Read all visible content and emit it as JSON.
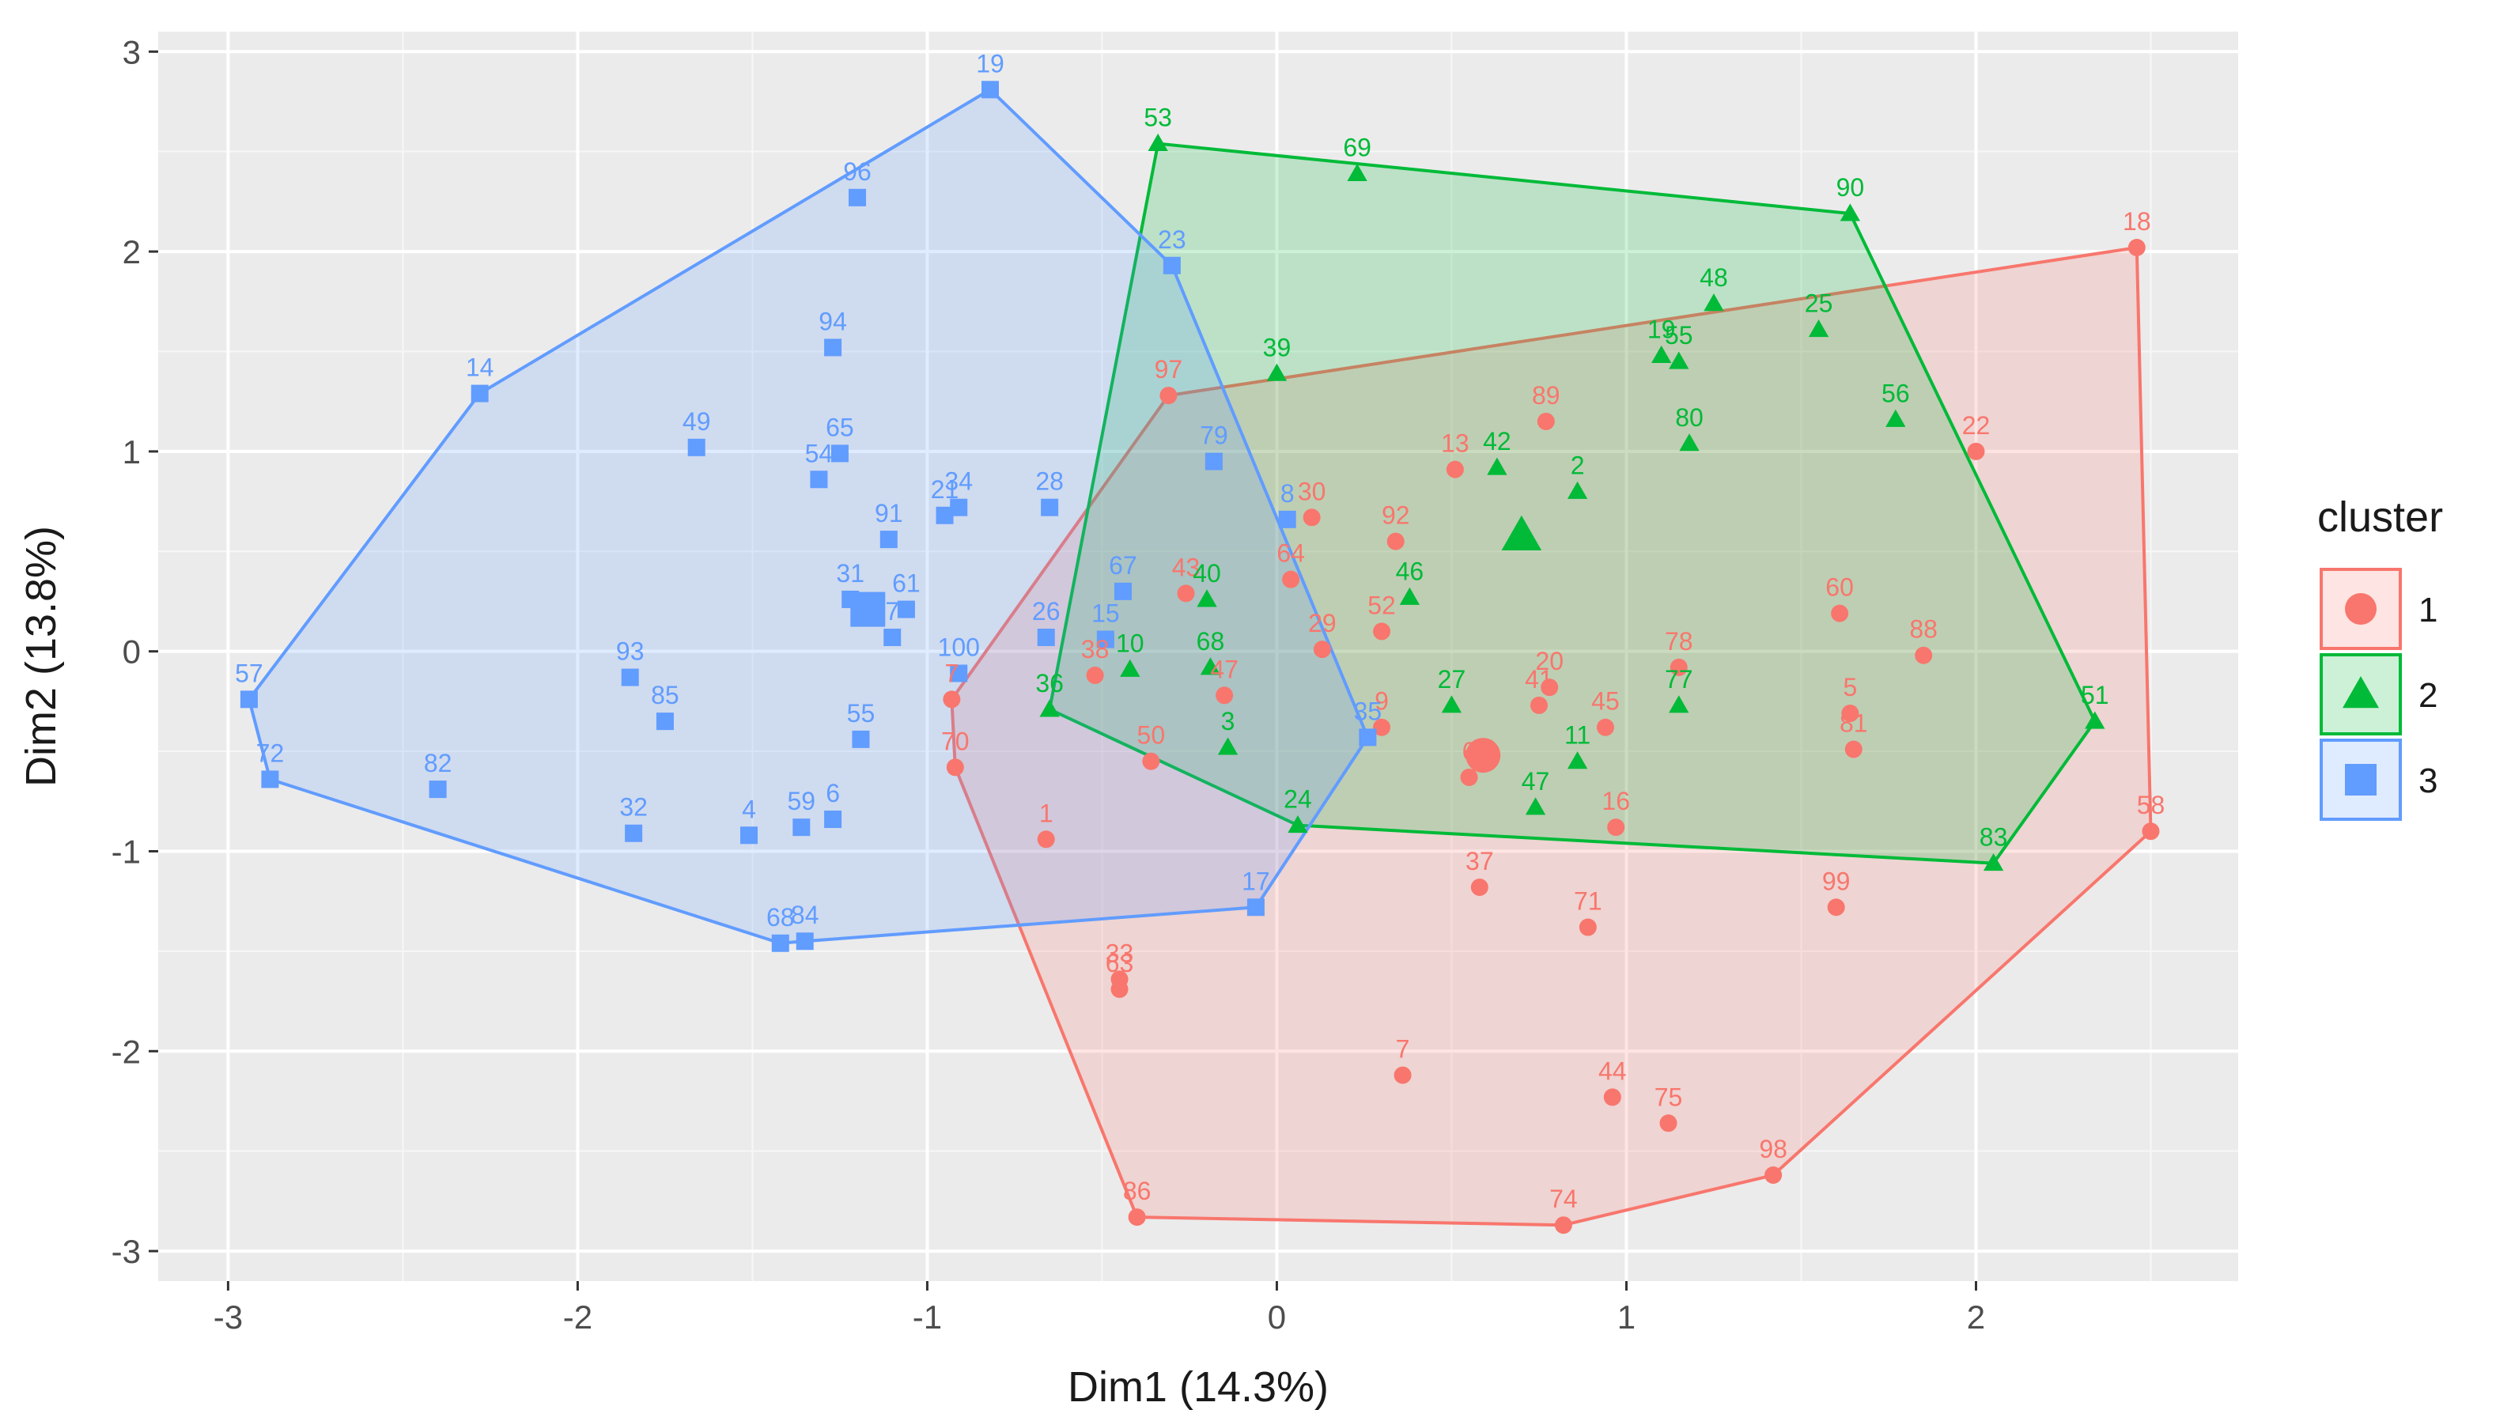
{
  "chart_data": {
    "type": "scatter",
    "title": "",
    "xlabel": "Dim1 (14.3%)",
    "ylabel": "Dim2 (13.8%)",
    "xlim": [
      -3.2,
      2.75
    ],
    "ylim": [
      -3.15,
      3.1
    ],
    "xticks": [
      -3,
      -2,
      -1,
      0,
      1,
      2
    ],
    "xtick_labels": [
      "-3",
      "-2",
      "-1",
      "0",
      "1",
      "2"
    ],
    "yticks": [
      -3,
      -2,
      -1,
      0,
      1,
      2,
      3
    ],
    "ytick_labels": [
      "-3",
      "-2",
      "-1",
      "0",
      "1",
      "2",
      "3"
    ],
    "grid": true,
    "legend": {
      "title": "cluster",
      "position": "right",
      "entries": [
        {
          "label": "1",
          "shape": "circle"
        },
        {
          "label": "2",
          "shape": "triangle"
        },
        {
          "label": "3",
          "shape": "square"
        }
      ]
    },
    "series": [
      {
        "name": "1",
        "shape": "circle",
        "color": "#F8766D",
        "centroid": [
          0.59,
          -0.52
        ],
        "hull": [
          "97",
          "18",
          "58",
          "98",
          "74",
          "86",
          "70",
          "7_",
          "97"
        ],
        "points": [
          {
            "label": "18",
            "x": 2.46,
            "y": 2.02
          },
          {
            "label": "22",
            "x": 2.0,
            "y": 1.0
          },
          {
            "label": "58",
            "x": 2.5,
            "y": -0.9
          },
          {
            "label": "98",
            "x": 1.42,
            "y": -2.62
          },
          {
            "label": "74",
            "x": 0.82,
            "y": -2.87
          },
          {
            "label": "86",
            "x": -0.4,
            "y": -2.83
          },
          {
            "label": "70",
            "x": -0.92,
            "y": -0.58
          },
          {
            "label": "7_",
            "x": -0.93,
            "y": -0.24
          },
          {
            "label": "97",
            "x": -0.31,
            "y": 1.28
          },
          {
            "label": "89",
            "x": 0.77,
            "y": 1.15
          },
          {
            "label": "13",
            "x": 0.51,
            "y": 0.91
          },
          {
            "label": "30",
            "x": 0.1,
            "y": 0.67
          },
          {
            "label": "92",
            "x": 0.34,
            "y": 0.55
          },
          {
            "label": "64",
            "x": 0.04,
            "y": 0.36
          },
          {
            "label": "43",
            "x": -0.26,
            "y": 0.29
          },
          {
            "label": "29",
            "x": 0.13,
            "y": 0.01
          },
          {
            "label": "52",
            "x": 0.3,
            "y": 0.1
          },
          {
            "label": "47",
            "x": -0.15,
            "y": -0.22
          },
          {
            "label": "38",
            "x": -0.52,
            "y": -0.12
          },
          {
            "label": "60",
            "x": 1.61,
            "y": 0.19
          },
          {
            "label": "88",
            "x": 1.85,
            "y": -0.02
          },
          {
            "label": "78",
            "x": 1.15,
            "y": -0.08
          },
          {
            "label": "20",
            "x": 0.78,
            "y": -0.18
          },
          {
            "label": "41",
            "x": 0.75,
            "y": -0.27
          },
          {
            "label": "45",
            "x": 0.94,
            "y": -0.38
          },
          {
            "label": "5",
            "x": 1.64,
            "y": -0.31
          },
          {
            "label": "81",
            "x": 1.65,
            "y": -0.49
          },
          {
            "label": "9",
            "x": 0.3,
            "y": -0.38
          },
          {
            "label": "6_",
            "x": 0.55,
            "y": -0.63
          },
          {
            "label": "16",
            "x": 0.97,
            "y": -0.88
          },
          {
            "label": "50",
            "x": -0.36,
            "y": -0.55
          },
          {
            "label": "1",
            "x": -0.66,
            "y": -0.94
          },
          {
            "label": "37",
            "x": 0.58,
            "y": -1.18
          },
          {
            "label": "71",
            "x": 0.89,
            "y": -1.38
          },
          {
            "label": "99",
            "x": 1.6,
            "y": -1.28
          },
          {
            "label": "33",
            "x": -0.45,
            "y": -1.64
          },
          {
            "label": "63",
            "x": -0.45,
            "y": -1.69
          },
          {
            "label": "7",
            "x": 0.36,
            "y": -2.12
          },
          {
            "label": "44",
            "x": 0.96,
            "y": -2.23
          },
          {
            "label": "75",
            "x": 1.12,
            "y": -2.36
          }
        ]
      },
      {
        "name": "2",
        "shape": "triangle",
        "color": "#00BA38",
        "centroid": [
          0.7,
          0.58
        ],
        "hull": [
          "53",
          "90",
          "51",
          "83",
          "24",
          "36",
          "53"
        ],
        "points": [
          {
            "label": "53",
            "x": -0.34,
            "y": 2.54
          },
          {
            "label": "69",
            "x": 0.23,
            "y": 2.39
          },
          {
            "label": "90",
            "x": 1.64,
            "y": 2.19
          },
          {
            "label": "48",
            "x": 1.25,
            "y": 1.74
          },
          {
            "label": "25",
            "x": 1.55,
            "y": 1.61
          },
          {
            "label": "19_",
            "x": 1.1,
            "y": 1.48
          },
          {
            "label": "55_",
            "x": 1.15,
            "y": 1.45
          },
          {
            "label": "39",
            "x": 0.0,
            "y": 1.39
          },
          {
            "label": "56",
            "x": 1.77,
            "y": 1.16
          },
          {
            "label": "80",
            "x": 1.18,
            "y": 1.04
          },
          {
            "label": "42",
            "x": 0.63,
            "y": 0.92
          },
          {
            "label": "2",
            "x": 0.86,
            "y": 0.8
          },
          {
            "label": "46",
            "x": 0.38,
            "y": 0.27
          },
          {
            "label": "40",
            "x": -0.2,
            "y": 0.26
          },
          {
            "label": "10",
            "x": -0.42,
            "y": -0.09
          },
          {
            "label": "68",
            "x": -0.19,
            "y": -0.08
          },
          {
            "label": "36",
            "x": -0.65,
            "y": -0.29
          },
          {
            "label": "27",
            "x": 0.5,
            "y": -0.27
          },
          {
            "label": "77",
            "x": 1.15,
            "y": -0.27
          },
          {
            "label": "3",
            "x": -0.14,
            "y": -0.48
          },
          {
            "label": "11",
            "x": 0.86,
            "y": -0.55
          },
          {
            "label": "47",
            "x": 0.74,
            "y": -0.78
          },
          {
            "label": "24",
            "x": 0.06,
            "y": -0.87
          },
          {
            "label": "51",
            "x": 2.34,
            "y": -0.35
          },
          {
            "label": "83",
            "x": 2.05,
            "y": -1.06
          }
        ]
      },
      {
        "name": "3",
        "shape": "square",
        "color": "#619CFF",
        "centroid": [
          -1.17,
          0.21
        ],
        "hull": [
          "19",
          "23",
          "35_",
          "17",
          "84",
          "68_",
          "72",
          "57",
          "14",
          "19"
        ],
        "points": [
          {
            "label": "19",
            "x": -0.82,
            "y": 2.81
          },
          {
            "label": "96",
            "x": -1.2,
            "y": 2.27
          },
          {
            "label": "23",
            "x": -0.3,
            "y": 1.93
          },
          {
            "label": "14",
            "x": -2.28,
            "y": 1.29
          },
          {
            "label": "94",
            "x": -1.27,
            "y": 1.52
          },
          {
            "label": "49",
            "x": -1.66,
            "y": 1.02
          },
          {
            "label": "65",
            "x": -1.25,
            "y": 0.99
          },
          {
            "label": "54",
            "x": -1.31,
            "y": 0.86
          },
          {
            "label": "21_",
            "x": -0.95,
            "y": 0.68
          },
          {
            "label": "34",
            "x": -0.91,
            "y": 0.72
          },
          {
            "label": "28",
            "x": -0.65,
            "y": 0.72
          },
          {
            "label": "91",
            "x": -1.11,
            "y": 0.56
          },
          {
            "label": "79",
            "x": -0.18,
            "y": 0.95
          },
          {
            "label": "8",
            "x": 0.03,
            "y": 0.66
          },
          {
            "label": "67",
            "x": -0.44,
            "y": 0.3
          },
          {
            "label": "31",
            "x": -1.22,
            "y": 0.26
          },
          {
            "label": "61",
            "x": -1.06,
            "y": 0.21
          },
          {
            "label": "7_b",
            "x": -1.1,
            "y": 0.07
          },
          {
            "label": "26",
            "x": -0.66,
            "y": 0.07
          },
          {
            "label": "15",
            "x": -0.49,
            "y": 0.06
          },
          {
            "label": "100",
            "x": -0.91,
            "y": -0.11
          },
          {
            "label": "57",
            "x": -2.94,
            "y": -0.24
          },
          {
            "label": "93",
            "x": -1.85,
            "y": -0.13
          },
          {
            "label": "85",
            "x": -1.75,
            "y": -0.35
          },
          {
            "label": "55",
            "x": -1.19,
            "y": -0.44
          },
          {
            "label": "35_",
            "x": 0.26,
            "y": -0.43
          },
          {
            "label": "72",
            "x": -2.88,
            "y": -0.64
          },
          {
            "label": "82",
            "x": -2.4,
            "y": -0.69
          },
          {
            "label": "32",
            "x": -1.84,
            "y": -0.91
          },
          {
            "label": "4",
            "x": -1.51,
            "y": -0.92
          },
          {
            "label": "59",
            "x": -1.36,
            "y": -0.88
          },
          {
            "label": "6",
            "x": -1.27,
            "y": -0.84
          },
          {
            "label": "17",
            "x": -0.06,
            "y": -1.28
          },
          {
            "label": "68_",
            "x": -1.42,
            "y": -1.46
          },
          {
            "label": "84",
            "x": -1.35,
            "y": -1.45
          }
        ]
      }
    ],
    "point_labels_display": {
      "7_": "7",
      "6_": "6",
      "19_": "19",
      "55_": "55",
      "21_": "21",
      "7_b": "7",
      "35_": "35",
      "68_": "68"
    }
  }
}
